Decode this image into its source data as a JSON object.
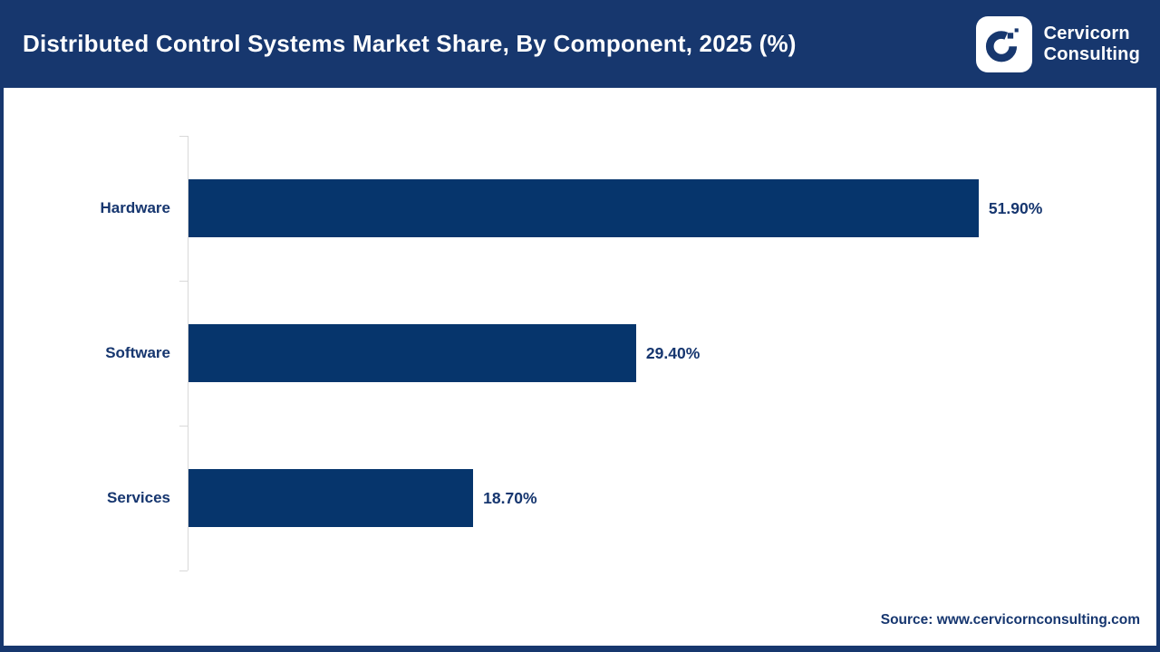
{
  "header": {
    "title": "Distributed Control Systems Market Share, By Component, 2025 (%)",
    "brand": {
      "line1": "Cervicorn",
      "line2": "Consulting"
    }
  },
  "chart_data": {
    "type": "bar",
    "orientation": "horizontal",
    "title": "Distributed Control Systems Market Share, By Component, 2025 (%)",
    "categories": [
      "Hardware",
      "Software",
      "Services"
    ],
    "values": [
      51.9,
      29.4,
      18.7
    ],
    "value_labels": [
      "51.90%",
      "29.40%",
      "18.70%"
    ],
    "xlabel": "",
    "ylabel": "",
    "xlim": [
      0,
      62
    ],
    "grid": false,
    "legend": false,
    "bar_color": "#06356C",
    "axis_line_color": "#D9D9D9",
    "label_color": "#16366F"
  },
  "footer": {
    "source": "Source: www.cervicornconsulting.com"
  },
  "colors": {
    "header_bg": "#17376E",
    "border": "#17376E",
    "title_text": "#FFFFFF"
  }
}
